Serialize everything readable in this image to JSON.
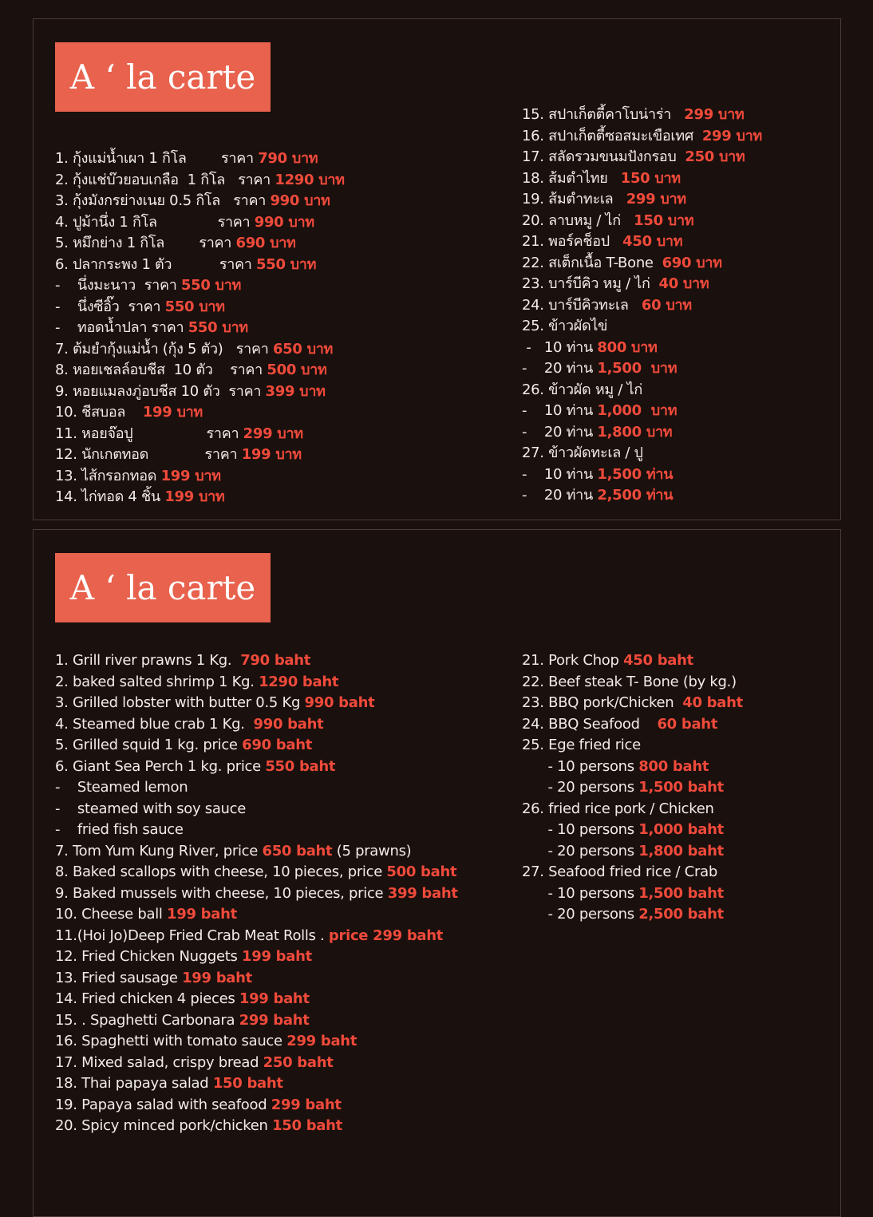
{
  "colors": {
    "background": "#1a100d",
    "title_box": "#e8624d",
    "price": "#ef4a3b",
    "text": "#f1ece8"
  },
  "thai_menu": {
    "title": "A ‘ la carte",
    "left": [
      {
        "text": "1. กุ้งแม่น้ำเผา 1 กิโล        ราคา ",
        "price": "790 บาท"
      },
      {
        "text": "2. กุ้งแช่บ๊วยอบเกลือ  1 กิโล   ราคา ",
        "price": "1290 บาท"
      },
      {
        "text": "3. กุ้งมังกรย่างเนย 0.5 กิโล   ราคา ",
        "price": "990 บาท"
      },
      {
        "text": "4. ปูม้านึ่ง 1 กิโล              ราคา ",
        "price": "990 บาท"
      },
      {
        "text": "5. หมึกย่าง 1 กิโล        ราคา ",
        "price": "690 บาท"
      },
      {
        "text": "6. ปลากระพง 1 ตัว           ราคา ",
        "price": "550 บาท"
      },
      {
        "text": "-    นึ่งมะนาว  ราคา ",
        "price": "550 บาท"
      },
      {
        "text": "-    นึ่งซีอิ๊ว  ราคา ",
        "price": "550 บาท"
      },
      {
        "text": "-    ทอดน้ำปลา ราคา ",
        "price": "550 บาท"
      },
      {
        "text": "7. ต้มยำกุ้งแม่น้ำ (กุ้ง 5 ตัว)   ราคา ",
        "price": "650 บาท"
      },
      {
        "text": "8. หอยเชลล์อบชีส  10 ตัว    ราคา ",
        "price": "500 บาท"
      },
      {
        "text": "9. หอยแมลงภู่อบชีส 10 ตัว  ราคา ",
        "price": "399 บาท"
      },
      {
        "text": "10. ชีสบอล    ",
        "price": "199 บาท"
      },
      {
        "text": "11. หอยจ๊อปู                 ราคา ",
        "price": "299 บาท"
      },
      {
        "text": "12. นักเกตทอด             ราคา ",
        "price": "199 บาท"
      },
      {
        "text": "13. ไส้กรอกทอด ",
        "price": "199 บาท"
      },
      {
        "text": "14. ไก่ทอด 4 ชิ้น ",
        "price": "199 บาท"
      }
    ],
    "right": [
      {
        "text": "15. สปาเก็ตตี้คาโบน่าร่า   ",
        "price": "299 บาท"
      },
      {
        "text": "16. สปาเก็ตตี้ซอสมะเขือเทศ  ",
        "price": "299 บาท"
      },
      {
        "text": "17. สลัดรวมขนมปังกรอบ  ",
        "price": "250 บาท"
      },
      {
        "text": "18. ส้มตำไทย   ",
        "price": "150 บาท"
      },
      {
        "text": "19. ส้มตำทะเล   ",
        "price": "299 บาท"
      },
      {
        "text": "20. ลาบหมู / ไก่   ",
        "price": "150 บาท"
      },
      {
        "text": "21. พอร์คช็อป   ",
        "price": "450 บาท"
      },
      {
        "text": "22. สเต็กเนื้อ T-Bone  ",
        "price": "690 บาท"
      },
      {
        "text": "23. บาร์บีคิว หมู / ไก่  ",
        "price": "40 บาท"
      },
      {
        "text": "24. บาร์บีคิวทะเล   ",
        "price": "60 บาท"
      },
      {
        "text": "25. ข้าวผัดไข่",
        "price": ""
      },
      {
        "text": " -   10 ท่าน ",
        "price": "800 บาท"
      },
      {
        "text": "-    20 ท่าน ",
        "price": "1,500  บาท"
      },
      {
        "text": "26. ข้าวผัด หมู / ไก่",
        "price": ""
      },
      {
        "text": "-    10 ท่าน ",
        "price": "1,000  บาท"
      },
      {
        "text": "-    20 ท่าน ",
        "price": "1,800 บาท"
      },
      {
        "text": "27. ข้าวผัดทะเล / ปู",
        "price": ""
      },
      {
        "text": "-    10 ท่าน ",
        "price": "1,500 ท่าน"
      },
      {
        "text": "-    20 ท่าน ",
        "price": "2,500 ท่าน"
      }
    ]
  },
  "english_menu": {
    "title": "A ‘ la carte",
    "left": [
      {
        "text": "1. Grill river prawns 1 Kg.  ",
        "price": "790 baht"
      },
      {
        "text": "2. baked salted shrimp 1 Kg. ",
        "price": "1290 baht"
      },
      {
        "text": "3. Grilled lobster with butter 0.5 Kg ",
        "price": "990 baht"
      },
      {
        "text": "4. Steamed blue crab 1 Kg.  ",
        "price": "990 baht"
      },
      {
        "text": "5. Grilled squid 1 kg. price ",
        "price": "690 baht"
      },
      {
        "text": "6. Giant Sea Perch 1 kg. price ",
        "price": "550 baht"
      },
      {
        "text": "-    Steamed lemon",
        "price": ""
      },
      {
        "text": "-    steamed with soy sauce",
        "price": ""
      },
      {
        "text": "-    fried fish sauce",
        "price": ""
      },
      {
        "text": "7. Tom Yum Kung River, price ",
        "price": "650 baht",
        "suffix": " (5 prawns)"
      },
      {
        "text": "8. Baked scallops with cheese, 10 pieces, price ",
        "price": "500 baht"
      },
      {
        "text": "9. Baked mussels with cheese, 10 pieces, price ",
        "price": "399 baht"
      },
      {
        "text": "10. Cheese ball ",
        "price": "199 baht"
      },
      {
        "text": "11.(Hoi Jo)Deep Fried Crab Meat Rolls . ",
        "price": "price 299 baht"
      },
      {
        "text": "12. Fried Chicken Nuggets ",
        "price": "199 baht"
      },
      {
        "text": "13. Fried sausage ",
        "price": "199 baht"
      },
      {
        "text": "14. Fried chicken 4 pieces ",
        "price": "199 baht"
      },
      {
        "text": "15. . Spaghetti Carbonara ",
        "price": "299 baht"
      },
      {
        "text": "16. Spaghetti with tomato sauce ",
        "price": "299 baht"
      },
      {
        "text": "17. Mixed salad, crispy bread ",
        "price": "250 baht"
      },
      {
        "text": "18. Thai papaya salad ",
        "price": "150 baht"
      },
      {
        "text": "19. Papaya salad with seafood ",
        "price": "299 baht"
      },
      {
        "text": "20. Spicy minced pork/chicken ",
        "price": "150 baht"
      }
    ],
    "right": [
      {
        "text": "21. Pork Chop ",
        "price": "450 baht"
      },
      {
        "text": "22. Beef steak T- Bone (by kg.)",
        "price": ""
      },
      {
        "text": "23. BBQ pork/Chicken  ",
        "price": "40 baht"
      },
      {
        "text": "24. BBQ Seafood    ",
        "price": "60 baht"
      },
      {
        "text": "25. Ege fried rice",
        "price": ""
      },
      {
        "text": "      - 10 persons ",
        "price": "800 baht"
      },
      {
        "text": "      - 20 persons ",
        "price": "1,500 baht"
      },
      {
        "text": "26. fried rice pork / Chicken",
        "price": ""
      },
      {
        "text": "      - 10 persons ",
        "price": "1,000 baht"
      },
      {
        "text": "      - 20 persons ",
        "price": "1,800 baht"
      },
      {
        "text": "27. Seafood fried rice / Crab",
        "price": ""
      },
      {
        "text": "      - 10 persons ",
        "price": "1,500 baht"
      },
      {
        "text": "      - 20 persons ",
        "price": "2,500 baht"
      }
    ]
  }
}
